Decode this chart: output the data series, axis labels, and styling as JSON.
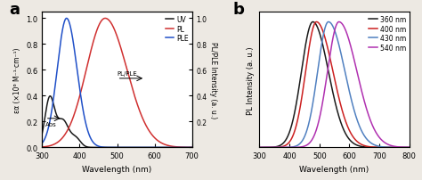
{
  "panel_a": {
    "xlim": [
      300,
      700
    ],
    "ylim": [
      0,
      1.05
    ],
    "xlabel": "Wavelength (nm)",
    "ylabel_left": "εα (×10⁶ M⁻¹·cm⁻¹)",
    "ylabel_right": "PL/PLE Intensity (a. u.)",
    "xticks": [
      300,
      400,
      500,
      600,
      700
    ],
    "yticks": [
      0.0,
      0.2,
      0.4,
      0.6,
      0.8,
      1.0
    ],
    "uv_color": "#1a1a1a",
    "pl_color": "#d03030",
    "ple_color": "#2050c8",
    "panel_label": "a",
    "uv_peak": 320,
    "uv_scale": 0.38,
    "pl_peak": 468,
    "pl_sigma_l": 50,
    "pl_sigma_r": 58,
    "ple_peak": 365,
    "ple_sigma_l": 25,
    "ple_sigma_r": 28
  },
  "panel_b": {
    "xlim": [
      300,
      800
    ],
    "ylim": [
      0,
      1.08
    ],
    "xlabel": "Wavelength (nm)",
    "ylabel": "PL Intensity (a. u.)",
    "xticks": [
      300,
      400,
      500,
      600,
      700,
      800
    ],
    "curves": [
      {
        "label": "360 nm",
        "color": "#1a1a1a",
        "peak": 478,
        "sigma_l": 38,
        "sigma_r": 52
      },
      {
        "label": "400 nm",
        "color": "#cc2020",
        "peak": 490,
        "sigma_l": 36,
        "sigma_r": 55
      },
      {
        "label": "430 nm",
        "color": "#5080c0",
        "peak": 530,
        "sigma_l": 36,
        "sigma_r": 55
      },
      {
        "label": "540 nm",
        "color": "#b030b0",
        "peak": 565,
        "sigma_l": 38,
        "sigma_r": 60
      }
    ],
    "panel_label": "b"
  },
  "bg_color": "#ede9e3",
  "panel_bg": "#ffffff"
}
